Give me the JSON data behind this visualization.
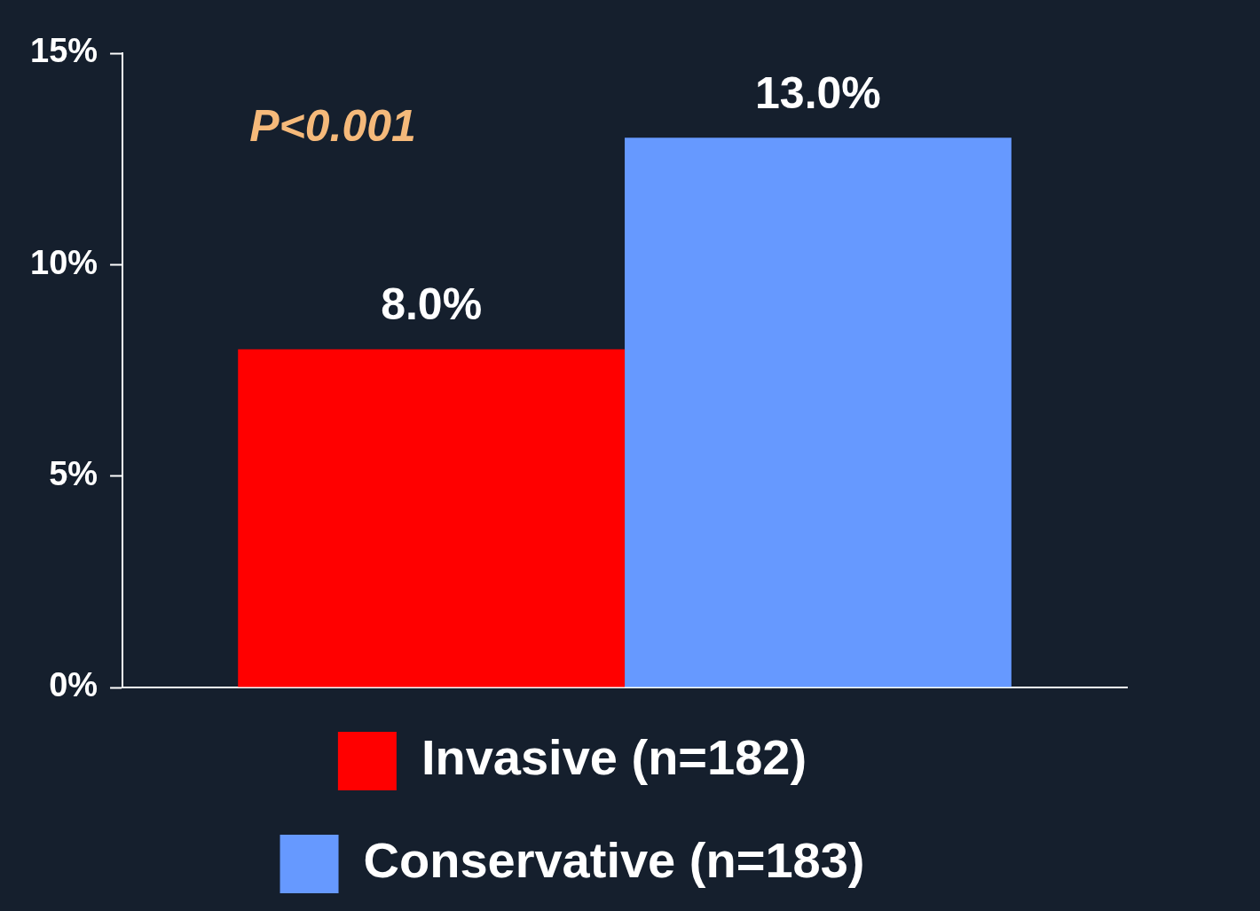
{
  "chart_data": {
    "type": "bar",
    "categories": [
      null
    ],
    "series": [
      {
        "name": "Invasive (n=182)",
        "color": "#ff0000",
        "values": [
          8.0
        ],
        "value_labels": [
          "8.0%"
        ]
      },
      {
        "name": "Conservative (n=183)",
        "color": "#6699ff",
        "values": [
          13.0
        ],
        "value_labels": [
          "13.0%"
        ]
      }
    ],
    "ylim": [
      0,
      15
    ],
    "yticks": [
      {
        "value": 0,
        "label": "0%"
      },
      {
        "value": 5,
        "label": "5%"
      },
      {
        "value": 10,
        "label": "10%"
      },
      {
        "value": 15,
        "label": "15%"
      }
    ],
    "annotations": [
      "P<0.001"
    ],
    "grid": false,
    "legend": "bottom"
  }
}
